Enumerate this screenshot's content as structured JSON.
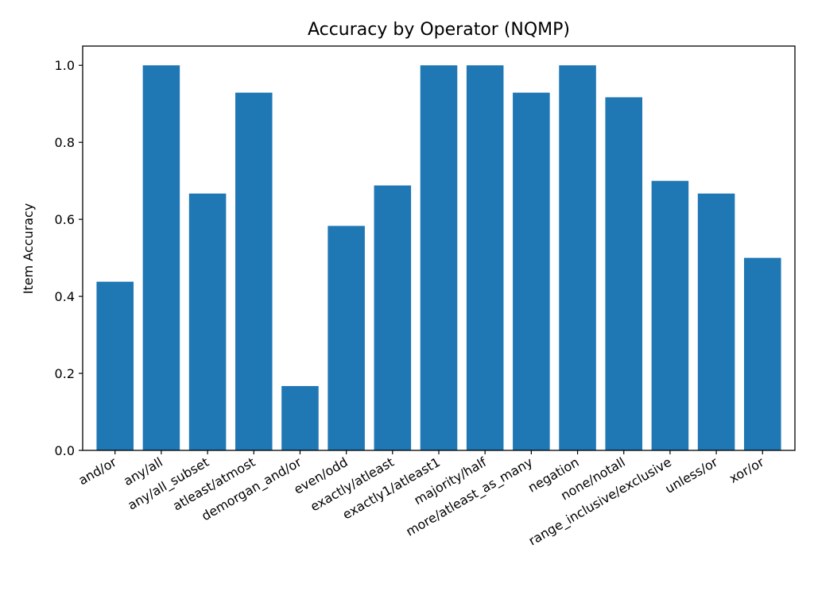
{
  "chart_data": {
    "type": "bar",
    "title": "Accuracy by Operator (NQMP)",
    "xlabel": "",
    "ylabel": "Item Accuracy",
    "categories": [
      "and/or",
      "any/all",
      "any/all_subset",
      "atleast/atmost",
      "demorgan_and/or",
      "even/odd",
      "exactly/atleast",
      "exactly1/atleast1",
      "majority/half",
      "more/atleast_as_many",
      "negation",
      "none/notall",
      "range_inclusive/exclusive",
      "unless/or",
      "xor/or"
    ],
    "values": [
      0.438,
      1.0,
      0.667,
      0.929,
      0.167,
      0.583,
      0.688,
      1.0,
      1.0,
      0.929,
      1.0,
      0.917,
      0.7,
      0.667,
      0.5
    ],
    "ylim": [
      0,
      1.05
    ],
    "yticks": [
      0.0,
      0.2,
      0.4,
      0.6,
      0.8,
      1.0
    ],
    "ytick_labels": [
      "0.0",
      "0.2",
      "0.4",
      "0.6",
      "0.8",
      "1.0"
    ],
    "bar_color": "#1f77b4",
    "grid": false,
    "legend": "none"
  }
}
